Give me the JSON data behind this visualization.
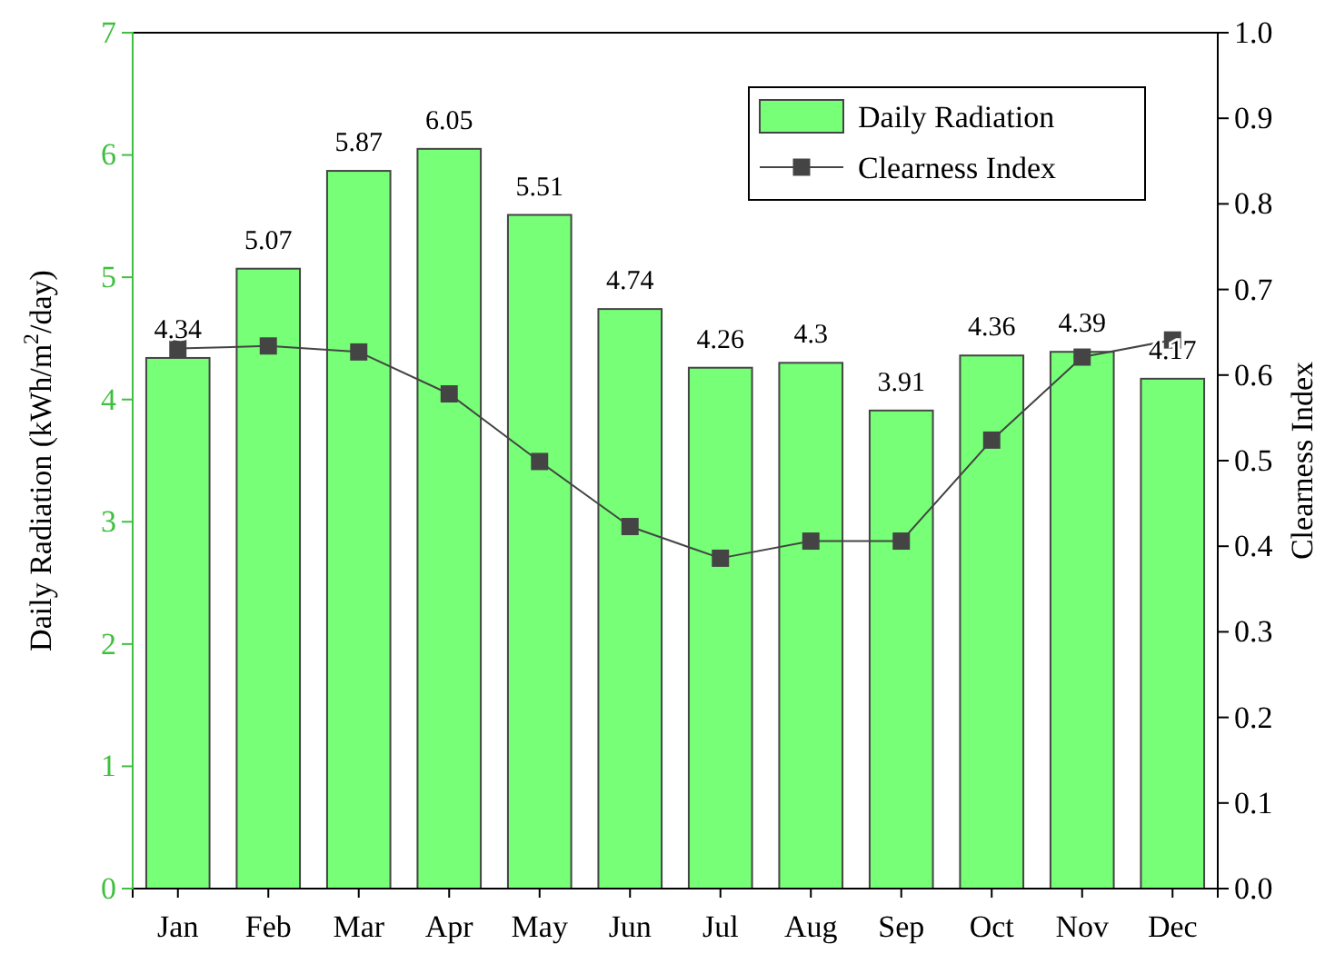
{
  "chart_data": {
    "type": "bar",
    "xlabel": null,
    "ylabel": "Daily Radiation (kWh/m$^{2}$/day)",
    "y2label": "Clearness Index",
    "categories": [
      "Jan",
      "Feb",
      "Mar",
      "Apr",
      "May",
      "Jun",
      "Jul",
      "Aug",
      "Sep",
      "Oct",
      "Nov",
      "Dec"
    ],
    "series": [
      {
        "name": "Daily Radiation",
        "color": "#77ff77",
        "values": [
          4.34,
          5.07,
          5.87,
          6.05,
          5.51,
          4.74,
          4.26,
          4.3,
          3.91,
          4.36,
          4.39,
          4.17
        ],
        "value_labels": [
          "4.34",
          "5.07",
          "5.87",
          "6.05",
          "5.51",
          "4.74",
          "4.26",
          "4.3",
          "3.91",
          "4.36",
          "4.39",
          "4.17"
        ]
      },
      {
        "name": "Clearness Index",
        "type": "line",
        "axis": "y2",
        "color": "#444444",
        "marker": "square",
        "values": [
          0.631,
          0.634,
          0.627,
          0.578,
          0.499,
          0.423,
          0.386,
          0.406,
          0.406,
          0.524,
          0.621,
          0.641
        ]
      }
    ],
    "ylim": [
      0,
      7
    ],
    "yticks": [
      0,
      1,
      2,
      3,
      4,
      5,
      6,
      7
    ],
    "y2lim": [
      0,
      1
    ],
    "y2ticks": [
      {
        "value": 0,
        "label": "0.0"
      },
      0.1,
      0.2,
      0.3,
      0.4,
      0.5,
      0.6,
      0.7,
      0.8,
      0.9,
      {
        "value": 1,
        "label": "1.0"
      }
    ],
    "legend": "top right",
    "grid": false
  }
}
